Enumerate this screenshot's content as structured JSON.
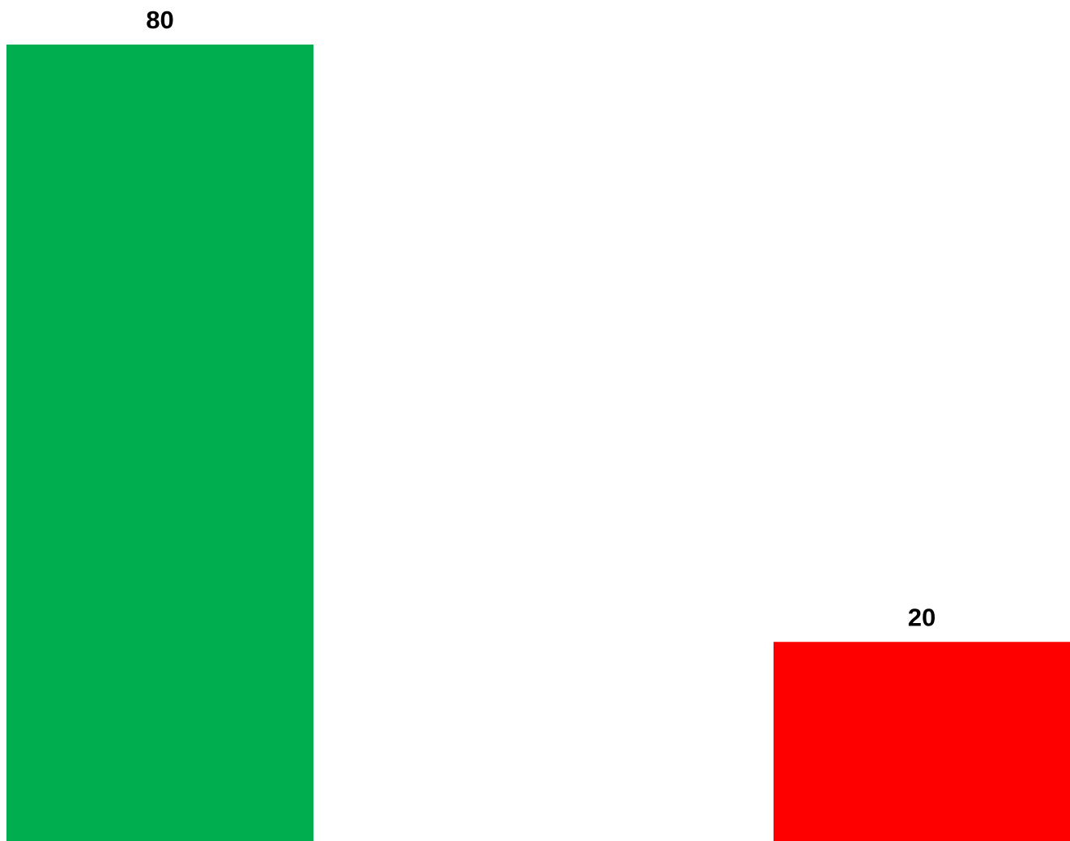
{
  "chart_data": {
    "type": "bar",
    "categories": [
      "",
      ""
    ],
    "values": [
      80,
      20
    ],
    "colors": [
      "#00AE4F",
      "#FF0000"
    ],
    "data_labels": [
      "80",
      "20"
    ],
    "title": "",
    "xlabel": "",
    "ylabel": "",
    "ylim": [
      0,
      80
    ],
    "grid": false,
    "legend": "none"
  }
}
